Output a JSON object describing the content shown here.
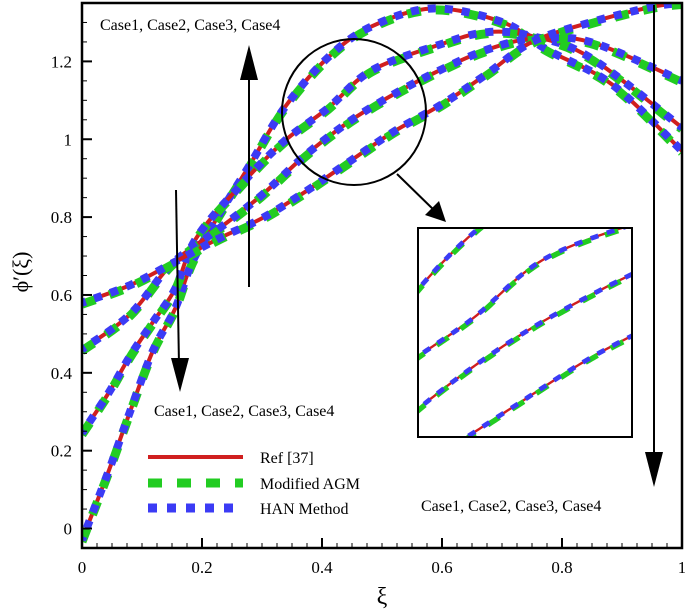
{
  "chart_data": {
    "type": "line",
    "xlabel": "ξ",
    "ylabel": "ϕ′(ξ)",
    "xlim": [
      0,
      1
    ],
    "ylim": [
      -0.05,
      1.35
    ],
    "xticks": [
      "0",
      "0.2",
      "0.4",
      "0.6",
      "0.8",
      "1"
    ],
    "yticks": [
      "0",
      "0.2",
      "0.4",
      "0.6",
      "0.8",
      "1",
      "1.2"
    ],
    "grid": false,
    "legend_placement": "bottom-left",
    "legend": [
      {
        "label": "Ref [37]",
        "color": "#d01f1f",
        "style": "solid"
      },
      {
        "label": "Modified AGM",
        "color": "#22cc22",
        "style": "dashed"
      },
      {
        "label": "HAN Method",
        "color": "#3b3bf5",
        "style": "dotted"
      }
    ],
    "annotations": [
      "Case1, Case2, Case3, Case4",
      "Case1, Case2, Case3, Case4",
      "Case1, Case2, Case3, Case4"
    ],
    "curves": [
      {
        "x": [
          0,
          0.045,
          0.08,
          0.118,
          0.155,
          0.184,
          0.228,
          0.28,
          0.337,
          0.41,
          0.483,
          0.585,
          0.702,
          0.775,
          0.884,
          1.0
        ],
        "y": [
          -0.03,
          0.15,
          0.3,
          0.456,
          0.564,
          0.685,
          0.805,
          0.935,
          1.08,
          1.21,
          1.29,
          1.336,
          1.3,
          1.23,
          1.14,
          0.97
        ]
      },
      {
        "x": [
          0,
          0.045,
          0.08,
          0.118,
          0.155,
          0.19,
          0.265,
          0.337,
          0.41,
          0.483,
          0.6,
          0.675,
          0.75,
          0.847,
          1.0
        ],
        "y": [
          0.245,
          0.35,
          0.443,
          0.53,
          0.615,
          0.745,
          0.883,
          0.995,
          1.08,
          1.177,
          1.245,
          1.275,
          1.265,
          1.21,
          1.03
        ]
      },
      {
        "x": [
          0,
          0.08,
          0.15,
          0.228,
          0.3,
          0.373,
          0.447,
          0.52,
          0.6,
          0.675,
          0.75,
          0.847,
          1.0
        ],
        "y": [
          0.46,
          0.55,
          0.68,
          0.77,
          0.857,
          0.96,
          1.047,
          1.116,
          1.18,
          1.23,
          1.258,
          1.25,
          1.15
        ]
      },
      {
        "x": [
          0,
          0.08,
          0.155,
          0.228,
          0.3,
          0.373,
          0.447,
          0.52,
          0.6,
          0.675,
          0.75,
          0.847,
          0.95,
          1.0
        ],
        "y": [
          0.58,
          0.625,
          0.685,
          0.745,
          0.797,
          0.866,
          0.944,
          1.02,
          1.09,
          1.168,
          1.25,
          1.3,
          1.34,
          1.35
        ]
      }
    ],
    "inset": {
      "xlim": [
        0.36,
        0.56
      ],
      "ylim": [
        0.9,
        1.22
      ]
    }
  }
}
